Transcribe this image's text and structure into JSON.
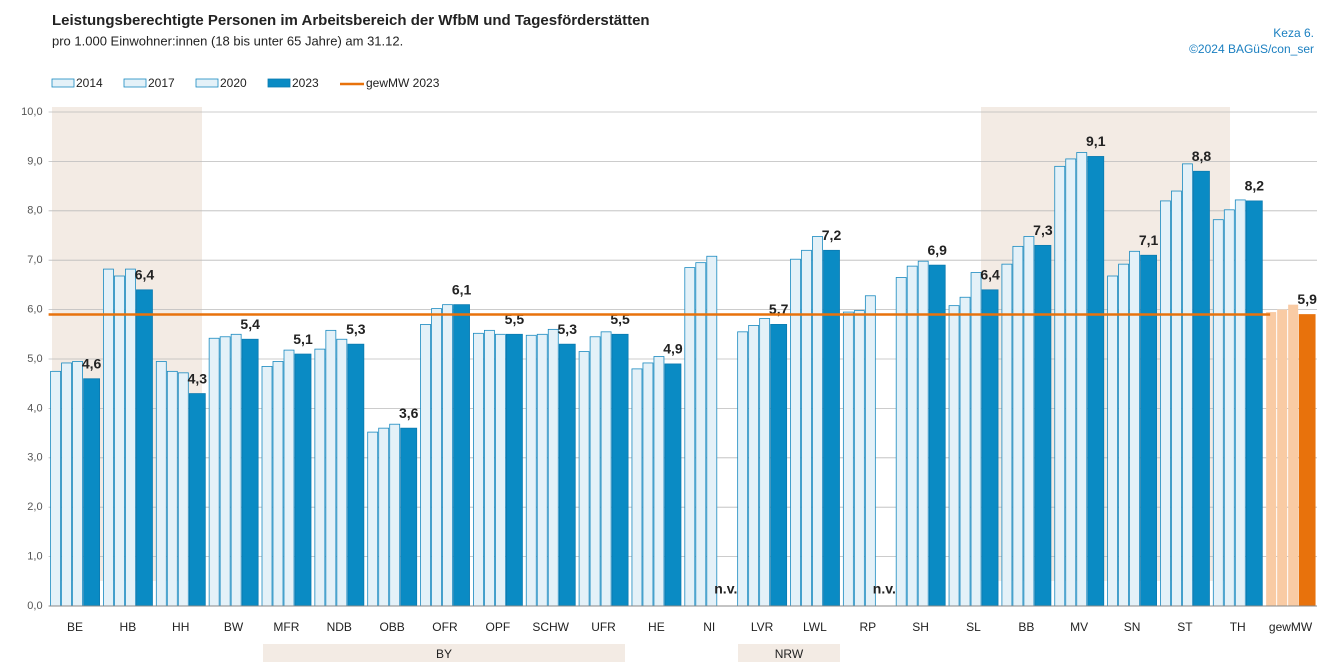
{
  "chart_data": {
    "type": "bar",
    "title": "Leistungsberechtigte Personen im Arbeitsbereich der WfbM und Tagesförderstätten",
    "subtitle": "pro 1.000 Einwohner:innen (18 bis unter 65 Jahre) am 31.12.",
    "source": [
      "Keza 6.",
      "©2024 BAGüS/con_ser"
    ],
    "categories": [
      "BE",
      "HB",
      "HH",
      "BW",
      "MFR",
      "NDB",
      "OBB",
      "OFR",
      "OPF",
      "SCHW",
      "UFR",
      "HE",
      "NI",
      "LVR",
      "LWL",
      "RP",
      "SH",
      "SL",
      "BB",
      "MV",
      "SN",
      "ST",
      "TH",
      "gewMW"
    ],
    "groups": [
      "BY",
      "NRW"
    ],
    "series": [
      {
        "name": "2014",
        "color": "#e4f1f8",
        "stroke": "#1a8ac0",
        "values": [
          4.75,
          6.82,
          4.95,
          5.42,
          4.85,
          5.2,
          3.52,
          5.7,
          5.52,
          5.48,
          5.15,
          4.8,
          6.85,
          5.55,
          7.02,
          5.95,
          6.65,
          6.08,
          6.92,
          8.9,
          6.68,
          8.2,
          7.82,
          5.95
        ]
      },
      {
        "name": "2017",
        "color": "#e4f1f8",
        "stroke": "#1a8ac0",
        "values": [
          4.92,
          6.68,
          4.75,
          5.45,
          4.95,
          5.58,
          3.6,
          6.02,
          5.58,
          5.5,
          5.45,
          4.92,
          6.95,
          5.68,
          7.2,
          5.98,
          6.88,
          6.25,
          7.28,
          9.05,
          6.92,
          8.4,
          8.02,
          6.0
        ]
      },
      {
        "name": "2020",
        "color": "#e4f1f8",
        "stroke": "#1a8ac0",
        "values": [
          4.95,
          6.82,
          4.72,
          5.5,
          5.18,
          5.4,
          3.68,
          6.1,
          5.5,
          5.6,
          5.55,
          5.05,
          7.08,
          5.82,
          7.48,
          6.28,
          6.98,
          6.75,
          7.48,
          9.18,
          7.18,
          8.95,
          8.22,
          6.1
        ]
      },
      {
        "name": "2023",
        "color": "#0a8bc4",
        "stroke": "#0a7ab0",
        "values": [
          4.6,
          6.4,
          4.3,
          5.4,
          5.1,
          5.3,
          3.6,
          6.1,
          5.5,
          5.3,
          5.5,
          4.9,
          null,
          5.7,
          7.2,
          null,
          6.9,
          6.4,
          7.3,
          9.1,
          7.1,
          8.8,
          8.2,
          5.9
        ],
        "value_labels": [
          "4,6",
          "6,4",
          "4,3",
          "5,4",
          "5,1",
          "5,3",
          "3,6",
          "6,1",
          "5,5",
          "5,3",
          "5,5",
          "4,9",
          "n.v.",
          "5,7",
          "7,2",
          "n.v.",
          "6,9",
          "6,4",
          "7,3",
          "9,1",
          "7,1",
          "8,8",
          "8,2",
          "5,9"
        ]
      }
    ],
    "highlight": {
      "category": "gewMW",
      "colors": [
        "#f9cba4",
        "#e8720c"
      ]
    },
    "reference_line": {
      "name": "gewMW 2023",
      "value": 5.9,
      "color": "#e8720c"
    },
    "ylim": [
      0,
      10
    ],
    "yticks": [
      {
        "value": 0,
        "label": "0,0"
      },
      {
        "value": 1,
        "label": "1,0"
      },
      {
        "value": 2,
        "label": "2,0"
      },
      {
        "value": 3,
        "label": "3,0"
      },
      {
        "value": 4,
        "label": "4,0"
      },
      {
        "value": 5,
        "label": "5,0"
      },
      {
        "value": 6,
        "label": "6,0"
      },
      {
        "value": 7,
        "label": "7,0"
      },
      {
        "value": 8,
        "label": "8,0"
      },
      {
        "value": 9,
        "label": "9,0"
      },
      {
        "value": 10,
        "label": "10,0"
      }
    ],
    "grid": true,
    "legend": "top-left"
  }
}
